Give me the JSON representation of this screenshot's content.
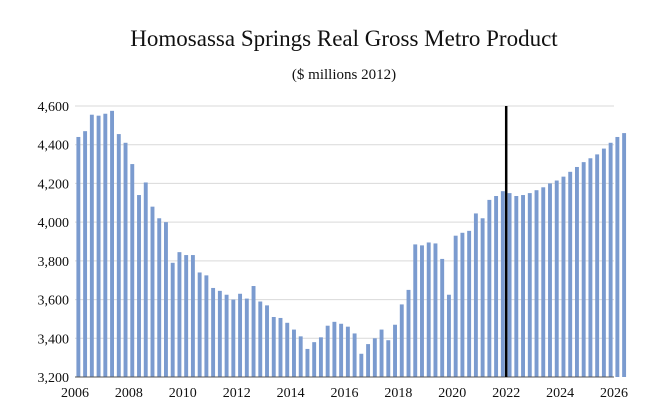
{
  "chart_data": {
    "type": "bar",
    "title": "Homosassa Springs Real Gross Metro Product",
    "subtitle": "($ millions 2012)",
    "xlabel": "",
    "ylabel": "",
    "ylim": [
      3200,
      4600
    ],
    "y_ticks": [
      "3,200",
      "3,400",
      "3,600",
      "3,800",
      "4,000",
      "4,200",
      "4,400",
      "4,600"
    ],
    "y_tick_values": [
      3200,
      3400,
      3600,
      3800,
      4000,
      4200,
      4400,
      4600
    ],
    "x_range": [
      2006,
      2026
    ],
    "x_ticks": [
      "2006",
      "2008",
      "2010",
      "2012",
      "2014",
      "2016",
      "2018",
      "2020",
      "2022",
      "2024",
      "2026"
    ],
    "x_tick_values": [
      2006,
      2008,
      2010,
      2012,
      2014,
      2016,
      2018,
      2020,
      2022,
      2024,
      2026
    ],
    "frequency": "quarterly",
    "start_period": 2006.0,
    "forecast_marker_x": 2022.0,
    "values": [
      4440,
      4470,
      4555,
      4550,
      4560,
      4575,
      4455,
      4410,
      4300,
      4140,
      4205,
      4080,
      4020,
      4000,
      3790,
      3845,
      3830,
      3830,
      3740,
      3725,
      3660,
      3645,
      3625,
      3600,
      3630,
      3605,
      3670,
      3590,
      3570,
      3510,
      3505,
      3480,
      3445,
      3410,
      3345,
      3380,
      3405,
      3465,
      3485,
      3475,
      3460,
      3425,
      3320,
      3370,
      3400,
      3445,
      3390,
      3470,
      3575,
      3650,
      3885,
      3880,
      3895,
      3890,
      3810,
      3625,
      3930,
      3945,
      3955,
      4045,
      4020,
      4115,
      4135,
      4160,
      4150,
      4135,
      4140,
      4150,
      4165,
      4180,
      4200,
      4215,
      4235,
      4260,
      4285,
      4310,
      4330,
      4350,
      4380,
      4410,
      4440,
      4460
    ]
  }
}
